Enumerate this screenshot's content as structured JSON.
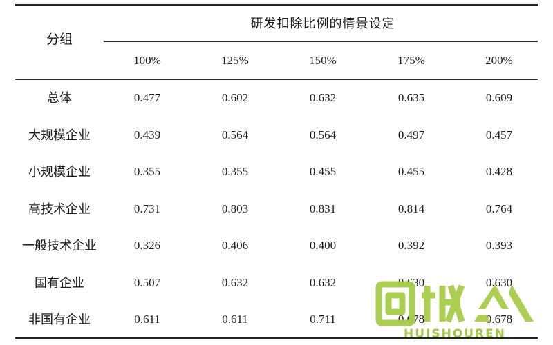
{
  "table": {
    "group_header": "分组",
    "scenario_header": "研发扣除比例的情景设定",
    "columns": [
      "100%",
      "125%",
      "150%",
      "175%",
      "200%"
    ],
    "rows": [
      {
        "label": "总体",
        "values": [
          "0.477",
          "0.602",
          "0.632",
          "0.635",
          "0.609"
        ]
      },
      {
        "label": "大规模企业",
        "values": [
          "0.439",
          "0.564",
          "0.564",
          "0.497",
          "0.457"
        ]
      },
      {
        "label": "小规模企业",
        "values": [
          "0.355",
          "0.355",
          "0.455",
          "0.455",
          "0.428"
        ]
      },
      {
        "label": "高技术企业",
        "values": [
          "0.731",
          "0.803",
          "0.831",
          "0.814",
          "0.764"
        ]
      },
      {
        "label": "一般技术企业",
        "values": [
          "0.326",
          "0.406",
          "0.400",
          "0.392",
          "0.393"
        ]
      },
      {
        "label": "国有企业",
        "values": [
          "0.507",
          "0.632",
          "0.632",
          "0.630",
          "0.630"
        ]
      },
      {
        "label": "非国有企业",
        "values": [
          "0.611",
          "0.611",
          "0.711",
          "0.678",
          "0.678"
        ]
      }
    ]
  },
  "watermark": {
    "text": "HUISHOUREN",
    "color": "#9cc53c",
    "icon": "recycle-logo-icon"
  }
}
